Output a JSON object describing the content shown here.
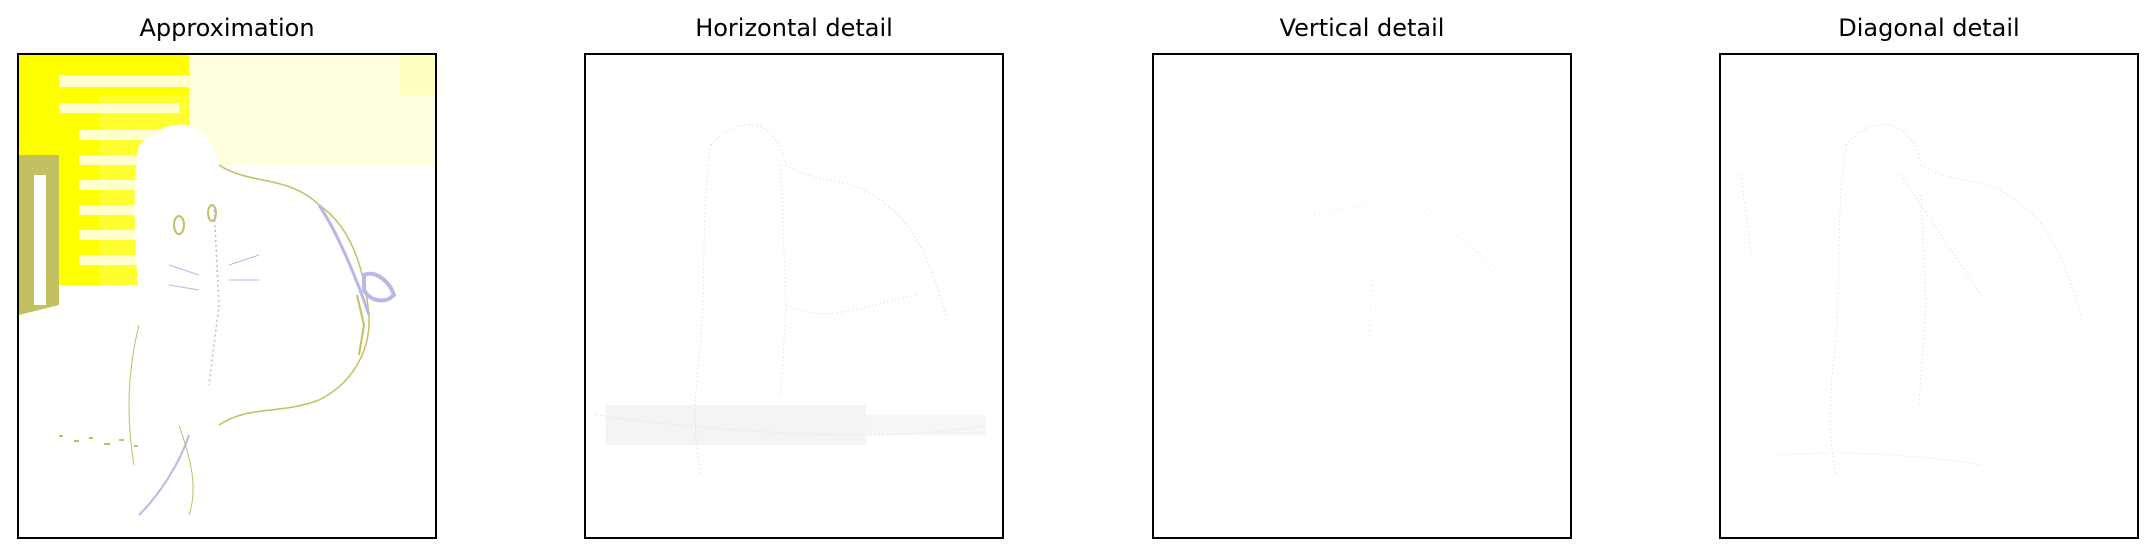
{
  "panels": [
    {
      "title": "Approximation",
      "image": "approximation-coefficients-image"
    },
    {
      "title": "Horizontal detail",
      "image": "horizontal-detail-coefficients-image"
    },
    {
      "title": "Vertical detail",
      "image": "vertical-detail-coefficients-image"
    },
    {
      "title": "Diagonal detail",
      "image": "diagonal-detail-coefficients-image"
    }
  ],
  "colors": {
    "frame": "#000000",
    "background": "#ffffff",
    "yellow": "#ffff00",
    "pale_yellow": "#ffffc8",
    "olive": "#c2c060",
    "lavender": "#b8b8e8",
    "detail_gray": "#c8c8d0"
  }
}
